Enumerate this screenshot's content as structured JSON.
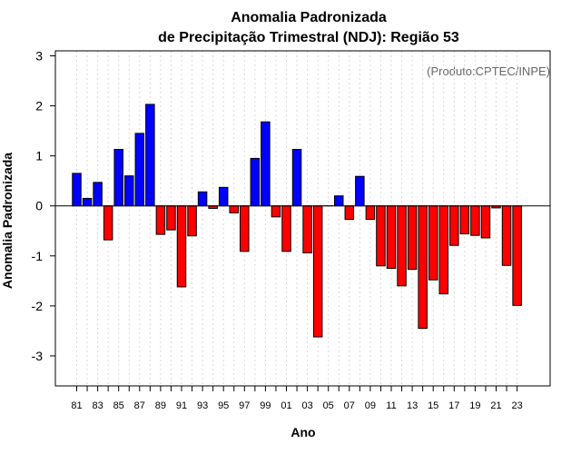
{
  "chart_data": {
    "type": "bar",
    "title_line1": "Anomalia Padronizada",
    "title_line2": "de Precipitação Trimestral (NDJ): Região 53",
    "xlabel": "Ano",
    "ylabel": "Anomalia Padronizada",
    "credit": "(Produto:CPTEC/INPE)",
    "ylim": [
      -3.6,
      3.1
    ],
    "yticks": [
      "-3",
      "-2",
      "-1",
      "0",
      "1",
      "2",
      "3"
    ],
    "ytick_values": [
      -3,
      -2,
      -1,
      0,
      1,
      2,
      3
    ],
    "positive_color": "#0000ff",
    "negative_color": "#ff0000",
    "categories": [
      "81",
      "82",
      "83",
      "84",
      "85",
      "86",
      "87",
      "88",
      "89",
      "90",
      "91",
      "92",
      "93",
      "94",
      "95",
      "96",
      "97",
      "98",
      "99",
      "00",
      "01",
      "02",
      "03",
      "04",
      "05",
      "06",
      "07",
      "08",
      "09",
      "10",
      "11",
      "12",
      "13",
      "14",
      "15",
      "16",
      "17",
      "18",
      "19",
      "20",
      "21",
      "22",
      "23"
    ],
    "xtick_labels": [
      "81",
      "83",
      "85",
      "87",
      "89",
      "91",
      "93",
      "95",
      "97",
      "99",
      "01",
      "03",
      "05",
      "07",
      "09",
      "11",
      "13",
      "15",
      "17",
      "19",
      "21",
      "23"
    ],
    "values": [
      0.65,
      0.15,
      0.47,
      -0.68,
      1.13,
      0.6,
      1.45,
      2.03,
      -0.57,
      -0.48,
      -1.62,
      -0.6,
      0.28,
      -0.05,
      0.37,
      -0.14,
      -0.91,
      0.95,
      1.68,
      -0.22,
      -0.91,
      1.13,
      -0.94,
      -2.62,
      0.0,
      0.2,
      -0.27,
      0.59,
      -0.27,
      -1.2,
      -1.25,
      -1.6,
      -1.27,
      -2.45,
      -1.48,
      -1.76,
      -0.79,
      -0.56,
      -0.59,
      -0.64,
      -0.04,
      -1.19,
      -1.99
    ]
  }
}
